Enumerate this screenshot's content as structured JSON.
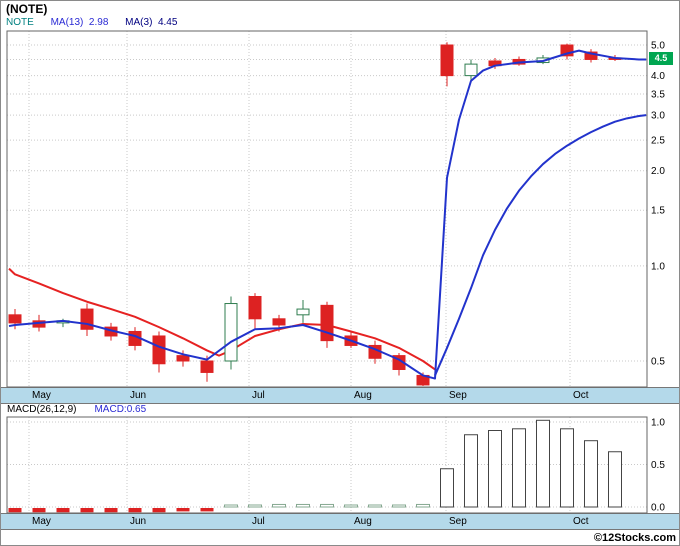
{
  "window": {
    "title": "(NOTE)"
  },
  "legend": {
    "symbol": "NOTE",
    "ma13_label": "MA(13)",
    "ma13_value": "2.98",
    "ma3_label": "MA(3)",
    "ma3_value": "4.45"
  },
  "price_axis": {
    "current_badge": "4.5"
  },
  "macd": {
    "label": "MACD(26,12,9)",
    "value": "MACD:0.65"
  },
  "footer": {
    "copyright": "©12Stocks.com"
  },
  "colors": {
    "down": "#dd2222",
    "up_border": "#2f7d4f",
    "ma_red": "#e62222",
    "ma_blue": "#2233cc",
    "grid": "#c9c9c9",
    "frame": "#666666",
    "band": "#b4d9ea",
    "badge": "#00a651",
    "macd_bar": "#444444",
    "macd_small": "#85a890",
    "symbol_text": "#008080",
    "ma13_text": "#2a2ad4",
    "ma3_text": "#000080"
  },
  "chart_data": [
    {
      "type": "candlestick",
      "symbol": "NOTE",
      "x_unit": "week",
      "months": [
        "May",
        "Jun",
        "Jul",
        "Aug",
        "Sep",
        "Oct"
      ],
      "scale": "log",
      "y_axis_labels": [
        5.0,
        4.0,
        3.5,
        3.0,
        2.5,
        2.0,
        1.5,
        1.0,
        0.5
      ],
      "y_gridlines": [
        5.0,
        4.5,
        4.0,
        3.5,
        3.0,
        2.5,
        2.0,
        1.5,
        1.0,
        0.5
      ],
      "last_price": 4.5,
      "candles": [
        [
          0.7,
          0.73,
          0.63,
          0.66
        ],
        [
          0.67,
          0.7,
          0.62,
          0.64
        ],
        [
          0.66,
          0.68,
          0.64,
          0.67
        ],
        [
          0.73,
          0.76,
          0.6,
          0.63
        ],
        [
          0.64,
          0.66,
          0.58,
          0.6
        ],
        [
          0.62,
          0.64,
          0.54,
          0.56
        ],
        [
          0.6,
          0.62,
          0.46,
          0.49
        ],
        [
          0.52,
          0.54,
          0.48,
          0.5
        ],
        [
          0.5,
          0.52,
          0.43,
          0.46
        ],
        [
          0.5,
          0.8,
          0.47,
          0.76
        ],
        [
          0.8,
          0.82,
          0.63,
          0.68
        ],
        [
          0.68,
          0.7,
          0.62,
          0.65
        ],
        [
          0.7,
          0.78,
          0.66,
          0.73
        ],
        [
          0.75,
          0.77,
          0.55,
          0.58
        ],
        [
          0.6,
          0.62,
          0.55,
          0.56
        ],
        [
          0.56,
          0.58,
          0.49,
          0.51
        ],
        [
          0.52,
          0.53,
          0.45,
          0.47
        ],
        [
          0.45,
          0.46,
          0.41,
          0.42
        ],
        [
          5.0,
          5.1,
          3.7,
          4.0
        ],
        [
          4.0,
          4.5,
          3.85,
          4.35
        ],
        [
          4.45,
          4.55,
          4.2,
          4.3
        ],
        [
          4.5,
          4.6,
          4.3,
          4.35
        ],
        [
          4.4,
          4.65,
          4.35,
          4.55
        ],
        [
          5.0,
          5.05,
          4.5,
          4.62
        ],
        [
          4.75,
          4.85,
          4.4,
          4.5
        ],
        [
          4.55,
          4.65,
          4.45,
          4.5
        ]
      ],
      "series": [
        {
          "name": "MA(3)",
          "current": 4.45,
          "points": [
            [
              -0.25,
              0.645
            ],
            [
              0,
              0.65
            ],
            [
              1,
              0.66
            ],
            [
              2,
              0.67
            ],
            [
              3,
              0.655
            ],
            [
              4,
              0.625
            ],
            [
              5,
              0.6
            ],
            [
              6,
              0.555
            ],
            [
              7,
              0.525
            ],
            [
              8,
              0.505
            ],
            [
              9,
              0.575
            ],
            [
              10,
              0.63
            ],
            [
              11,
              0.635
            ],
            [
              12,
              0.65
            ],
            [
              13,
              0.615
            ],
            [
              14,
              0.58
            ],
            [
              15,
              0.545
            ],
            [
              16,
              0.505
            ],
            [
              17,
              0.45
            ],
            [
              17.5,
              0.44
            ],
            [
              18,
              1.9
            ],
            [
              18.5,
              2.9
            ],
            [
              19,
              3.85
            ],
            [
              19.5,
              4.15
            ],
            [
              20,
              4.3
            ],
            [
              21,
              4.4
            ],
            [
              22,
              4.45
            ],
            [
              23,
              4.7
            ],
            [
              23.5,
              4.8
            ],
            [
              24,
              4.7
            ],
            [
              25,
              4.55
            ],
            [
              26,
              4.5
            ],
            [
              26.3,
              4.5
            ]
          ]
        },
        {
          "name": "MA(13)",
          "current": 2.98,
          "points": [
            [
              17.5,
              0.45
            ],
            [
              18,
              0.55
            ],
            [
              18.5,
              0.68
            ],
            [
              19,
              0.85
            ],
            [
              19.5,
              1.08
            ],
            [
              20,
              1.3
            ],
            [
              20.5,
              1.52
            ],
            [
              21,
              1.73
            ],
            [
              21.5,
              1.92
            ],
            [
              22,
              2.1
            ],
            [
              22.5,
              2.26
            ],
            [
              23,
              2.4
            ],
            [
              23.5,
              2.53
            ],
            [
              24,
              2.65
            ],
            [
              24.5,
              2.76
            ],
            [
              25,
              2.86
            ],
            [
              25.5,
              2.93
            ],
            [
              26,
              2.98
            ],
            [
              26.3,
              3.0
            ]
          ]
        },
        {
          "name": "MA-red",
          "points": [
            [
              -0.25,
              0.98
            ],
            [
              0,
              0.94
            ],
            [
              1,
              0.88
            ],
            [
              2,
              0.82
            ],
            [
              3,
              0.77
            ],
            [
              4,
              0.73
            ],
            [
              5,
              0.69
            ],
            [
              6,
              0.64
            ],
            [
              7,
              0.59
            ],
            [
              8,
              0.54
            ],
            [
              8.5,
              0.52
            ],
            [
              9,
              0.54
            ],
            [
              10,
              0.6
            ],
            [
              11,
              0.63
            ],
            [
              12,
              0.655
            ],
            [
              13,
              0.65
            ],
            [
              14,
              0.62
            ],
            [
              15,
              0.59
            ],
            [
              16,
              0.55
            ],
            [
              17,
              0.5
            ],
            [
              17.5,
              0.47
            ]
          ]
        }
      ]
    },
    {
      "type": "bar",
      "name": "MACD(26,12,9)",
      "current": 0.65,
      "y_axis_labels": [
        1.0,
        0.5,
        0.0
      ],
      "values": [
        -0.05,
        -0.05,
        -0.05,
        -0.05,
        -0.05,
        -0.05,
        -0.05,
        -0.04,
        -0.04,
        0.02,
        0.02,
        0.03,
        0.03,
        0.03,
        0.02,
        0.02,
        0.02,
        0.03,
        0.45,
        0.85,
        0.9,
        0.92,
        1.02,
        0.92,
        0.78,
        0.65
      ]
    }
  ]
}
